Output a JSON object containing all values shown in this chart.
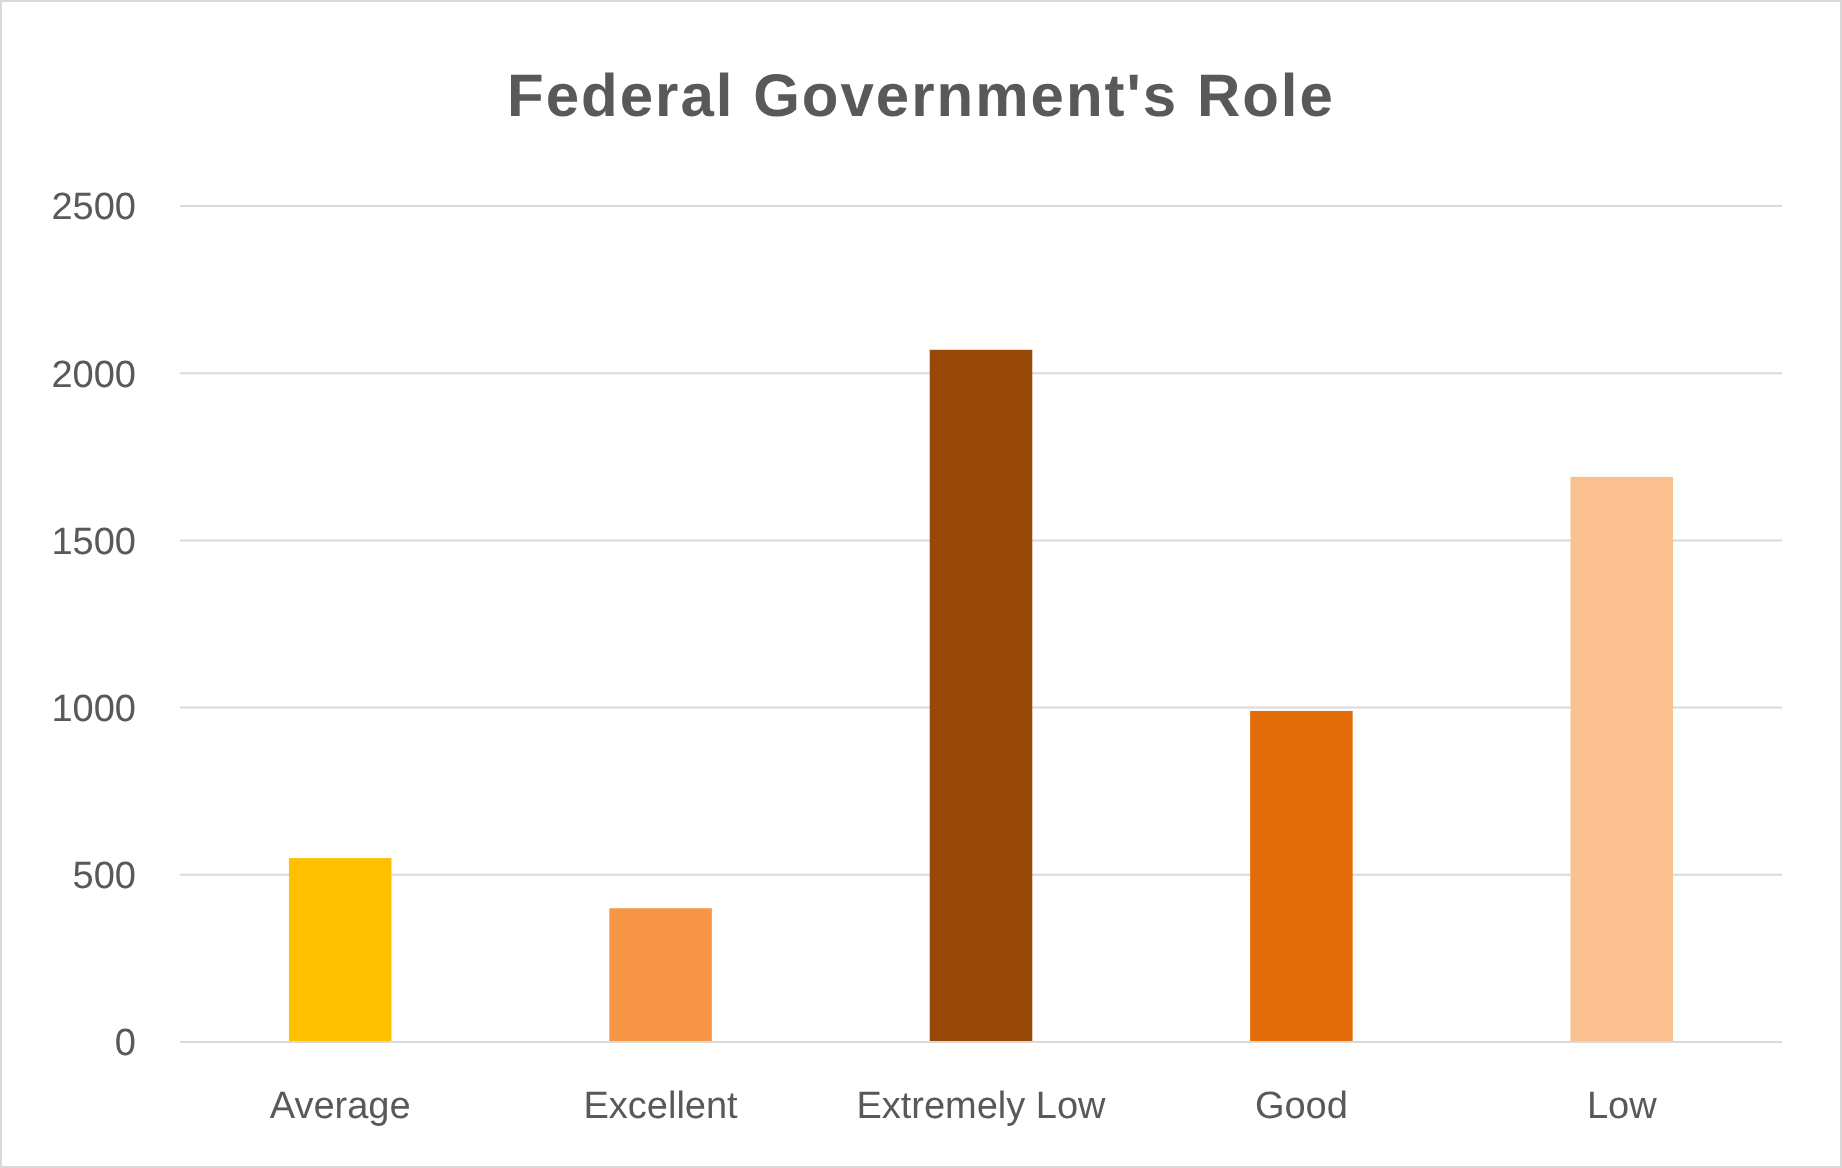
{
  "chart_data": {
    "type": "bar",
    "title": "Federal Government's Role",
    "categories": [
      "Average",
      "Excellent",
      "Extremely Low",
      "Good",
      "Low"
    ],
    "values": [
      550,
      400,
      2070,
      990,
      1690
    ],
    "colors": [
      "#ffc000",
      "#f79646",
      "#974706",
      "#e36c09",
      "#fac090"
    ],
    "ylim": [
      0,
      2500
    ],
    "yticks": [
      0,
      500,
      1000,
      1500,
      2000,
      2500
    ],
    "grid": "y"
  }
}
